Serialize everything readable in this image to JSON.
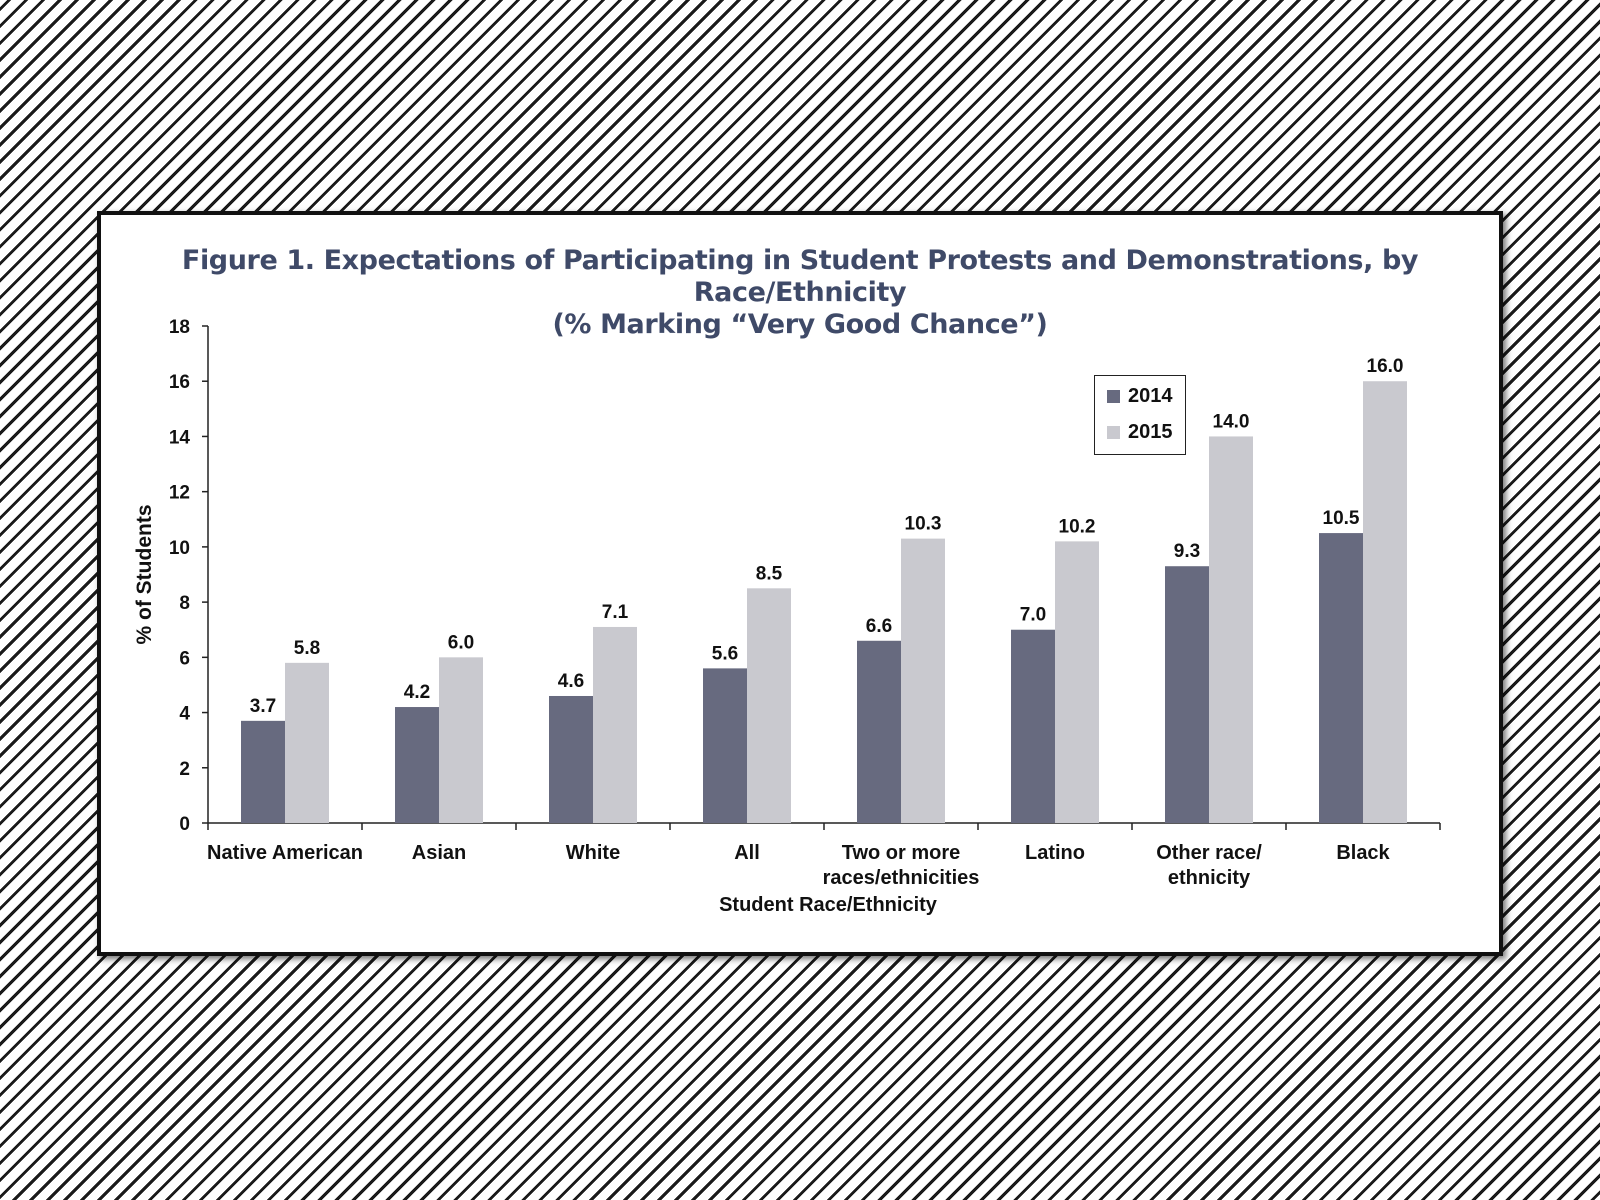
{
  "chart_data": {
    "type": "bar",
    "title": "Figure 1. Expectations of Participating in Student Protests and Demonstrations, by Race/Ethnicity",
    "subtitle": "(% Marking “Very Good Chance”)",
    "xlabel": "Student Race/Ethnicity",
    "ylabel": "% of Students",
    "ylim": [
      0,
      18
    ],
    "yticks": [
      0,
      2,
      4,
      6,
      8,
      10,
      12,
      14,
      16,
      18
    ],
    "categories": [
      [
        "Native American"
      ],
      [
        "Asian"
      ],
      [
        "White"
      ],
      [
        "All"
      ],
      [
        "Two or more",
        "races/ethnicities"
      ],
      [
        "Latino"
      ],
      [
        "Other race/",
        "ethnicity"
      ],
      [
        "Black"
      ]
    ],
    "series": [
      {
        "name": "2014",
        "color": "#676a7f",
        "values": [
          3.7,
          4.2,
          4.6,
          5.6,
          6.6,
          7.0,
          9.3,
          10.5
        ],
        "labels": [
          "3.7",
          "4.2",
          "4.6",
          "5.6",
          "6.6",
          "7.0",
          "9.3",
          "10.5"
        ]
      },
      {
        "name": "2015",
        "color": "#c9c9cf",
        "values": [
          5.8,
          6.0,
          7.1,
          8.5,
          10.3,
          10.2,
          14.0,
          16.0
        ],
        "labels": [
          "5.8",
          "6.0",
          "7.1",
          "8.5",
          "10.3",
          "10.2",
          "14.0",
          "16.0"
        ]
      }
    ],
    "legend_position": "top-right",
    "grid": false
  }
}
